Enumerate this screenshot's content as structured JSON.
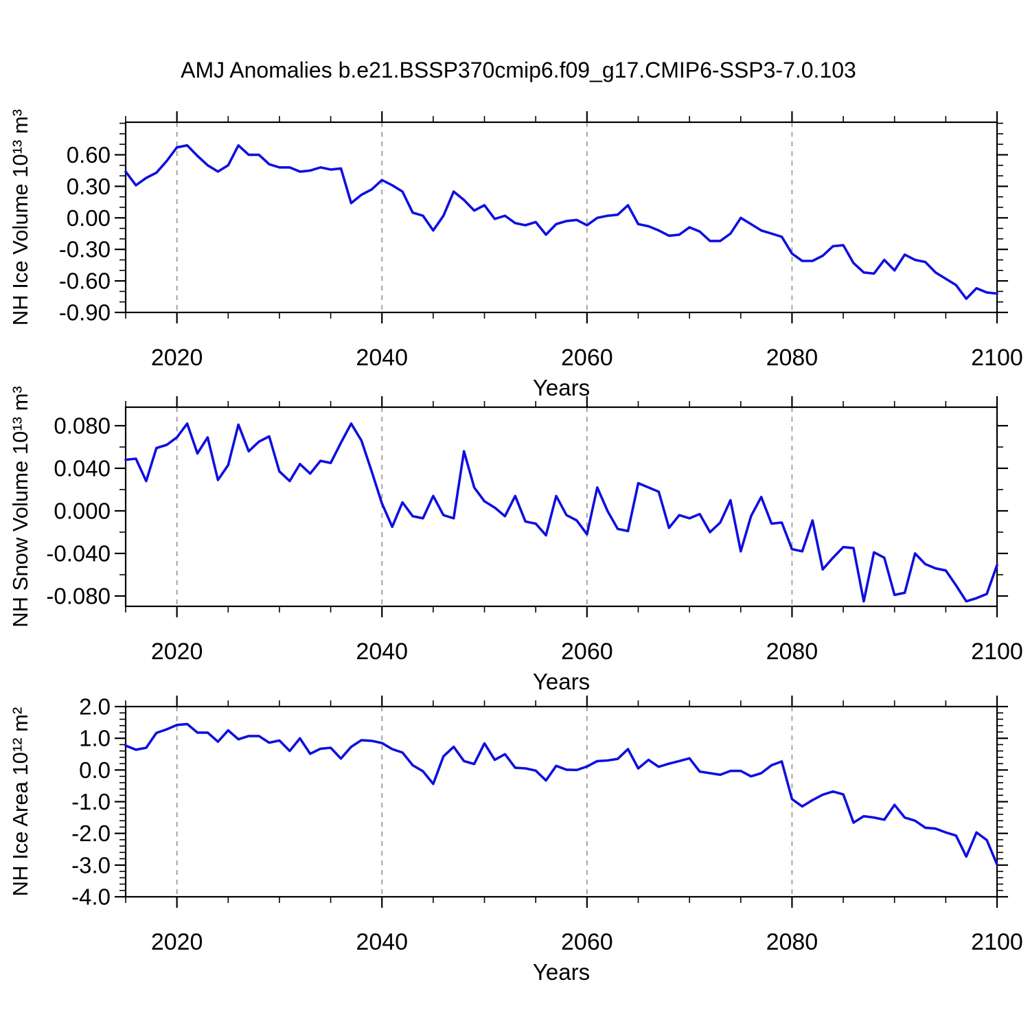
{
  "chart_data": {
    "type": "line",
    "title": "AMJ Anomalies b.e21.BSSP370cmip6.f09_g17.CMIP6-SSP3-7.0.103",
    "xlabel": "Years",
    "line_color": "#0f0fe0",
    "grid_color": "#909090",
    "frame_color": "#000000",
    "x_start": 2015,
    "x_end": 2100,
    "x_step": 1,
    "x_major_ticks": [
      2020,
      2040,
      2060,
      2080,
      2100
    ],
    "x_major_labels": [
      "2020",
      "2040",
      "2060",
      "2080",
      "2100"
    ],
    "x_minor_step": 5,
    "grid_years": [
      2020,
      2040,
      2060,
      2080
    ],
    "legend": "none",
    "grid": "vertical-dashed",
    "panels": [
      {
        "id": "panel-nh-ice-volume",
        "ylabel": "NH Ice Volume 10¹³ m³",
        "ylim": [
          -0.9,
          0.91
        ],
        "y_tick_values": [
          0.6,
          0.3,
          0.0,
          -0.3,
          -0.6,
          -0.9
        ],
        "y_tick_labels": [
          "0.60",
          "0.30",
          "0.00",
          "-0.30",
          "-0.60",
          "-0.90"
        ],
        "y_minor_step": 0.1,
        "values": [
          0.44,
          0.31,
          0.38,
          0.43,
          0.54,
          0.67,
          0.69,
          0.59,
          0.5,
          0.44,
          0.5,
          0.69,
          0.6,
          0.6,
          0.51,
          0.48,
          0.48,
          0.44,
          0.45,
          0.48,
          0.46,
          0.47,
          0.14,
          0.22,
          0.27,
          0.36,
          0.31,
          0.25,
          0.05,
          0.02,
          -0.12,
          0.02,
          0.25,
          0.17,
          0.07,
          0.12,
          -0.01,
          0.02,
          -0.05,
          -0.07,
          -0.04,
          -0.16,
          -0.06,
          -0.03,
          -0.02,
          -0.07,
          0.0,
          0.02,
          0.03,
          0.12,
          -0.06,
          -0.08,
          -0.12,
          -0.17,
          -0.16,
          -0.09,
          -0.13,
          -0.22,
          -0.22,
          -0.15,
          0.0,
          -0.06,
          -0.12,
          -0.15,
          -0.18,
          -0.34,
          -0.41,
          -0.41,
          -0.36,
          -0.27,
          -0.26,
          -0.43,
          -0.52,
          -0.53,
          -0.4,
          -0.5,
          -0.35,
          -0.4,
          -0.42,
          -0.52,
          -0.58,
          -0.64,
          -0.77,
          -0.67,
          -0.71,
          -0.72
        ]
      },
      {
        "id": "panel-nh-snow-volume",
        "ylabel": "NH Snow Volume 10¹³ m³",
        "ylim": [
          -0.0897,
          0.0974
        ],
        "y_tick_values": [
          0.08,
          0.04,
          0.0,
          -0.04,
          -0.08
        ],
        "y_tick_labels": [
          "0.080",
          "0.040",
          "0.000",
          "-0.040",
          "-0.080"
        ],
        "y_minor_step": 0.02,
        "values": [
          0.048,
          0.049,
          0.028,
          0.059,
          0.062,
          0.069,
          0.082,
          0.054,
          0.069,
          0.029,
          0.043,
          0.081,
          0.056,
          0.065,
          0.07,
          0.037,
          0.028,
          0.044,
          0.035,
          0.047,
          0.045,
          0.064,
          0.082,
          0.066,
          0.037,
          0.007,
          -0.015,
          0.008,
          -0.005,
          -0.007,
          0.014,
          -0.004,
          -0.007,
          0.056,
          0.022,
          0.009,
          0.003,
          -0.005,
          0.014,
          -0.01,
          -0.012,
          -0.023,
          0.014,
          -0.004,
          -0.009,
          -0.022,
          0.022,
          0.0,
          -0.017,
          -0.019,
          0.026,
          0.022,
          0.018,
          -0.016,
          -0.004,
          -0.007,
          -0.003,
          -0.02,
          -0.011,
          0.01,
          -0.038,
          -0.005,
          0.013,
          -0.012,
          -0.011,
          -0.036,
          -0.038,
          -0.009,
          -0.055,
          -0.044,
          -0.034,
          -0.035,
          -0.085,
          -0.039,
          -0.044,
          -0.079,
          -0.077,
          -0.04,
          -0.05,
          -0.054,
          -0.056,
          -0.07,
          -0.085,
          -0.082,
          -0.078,
          -0.051
        ]
      },
      {
        "id": "panel-nh-ice-area",
        "ylabel": "NH Ice Area 10¹² m²",
        "ylim": [
          -4.0,
          2.0
        ],
        "y_tick_values": [
          2.0,
          1.0,
          0.0,
          -1.0,
          -2.0,
          -3.0,
          -4.0
        ],
        "y_tick_labels": [
          "2.0",
          "1.0",
          "0.0",
          "-1.0",
          "-2.0",
          "-3.0",
          "-4.0"
        ],
        "y_minor_step": 0.2,
        "values": [
          0.77,
          0.64,
          0.7,
          1.17,
          1.28,
          1.42,
          1.45,
          1.18,
          1.18,
          0.89,
          1.25,
          0.97,
          1.07,
          1.07,
          0.86,
          0.93,
          0.6,
          1.0,
          0.51,
          0.67,
          0.7,
          0.36,
          0.73,
          0.94,
          0.92,
          0.85,
          0.66,
          0.55,
          0.15,
          -0.04,
          -0.44,
          0.43,
          0.73,
          0.28,
          0.19,
          0.84,
          0.32,
          0.5,
          0.07,
          0.05,
          -0.02,
          -0.33,
          0.13,
          0.01,
          0.0,
          0.11,
          0.28,
          0.3,
          0.35,
          0.66,
          0.05,
          0.32,
          0.1,
          0.2,
          0.28,
          0.37,
          -0.05,
          -0.1,
          -0.15,
          -0.03,
          -0.03,
          -0.2,
          -0.1,
          0.15,
          0.27,
          -0.92,
          -1.15,
          -0.95,
          -0.78,
          -0.68,
          -0.77,
          -1.66,
          -1.46,
          -1.5,
          -1.57,
          -1.1,
          -1.5,
          -1.6,
          -1.82,
          -1.85,
          -1.97,
          -2.07,
          -2.73,
          -1.97,
          -2.21,
          -2.98
        ]
      }
    ]
  }
}
